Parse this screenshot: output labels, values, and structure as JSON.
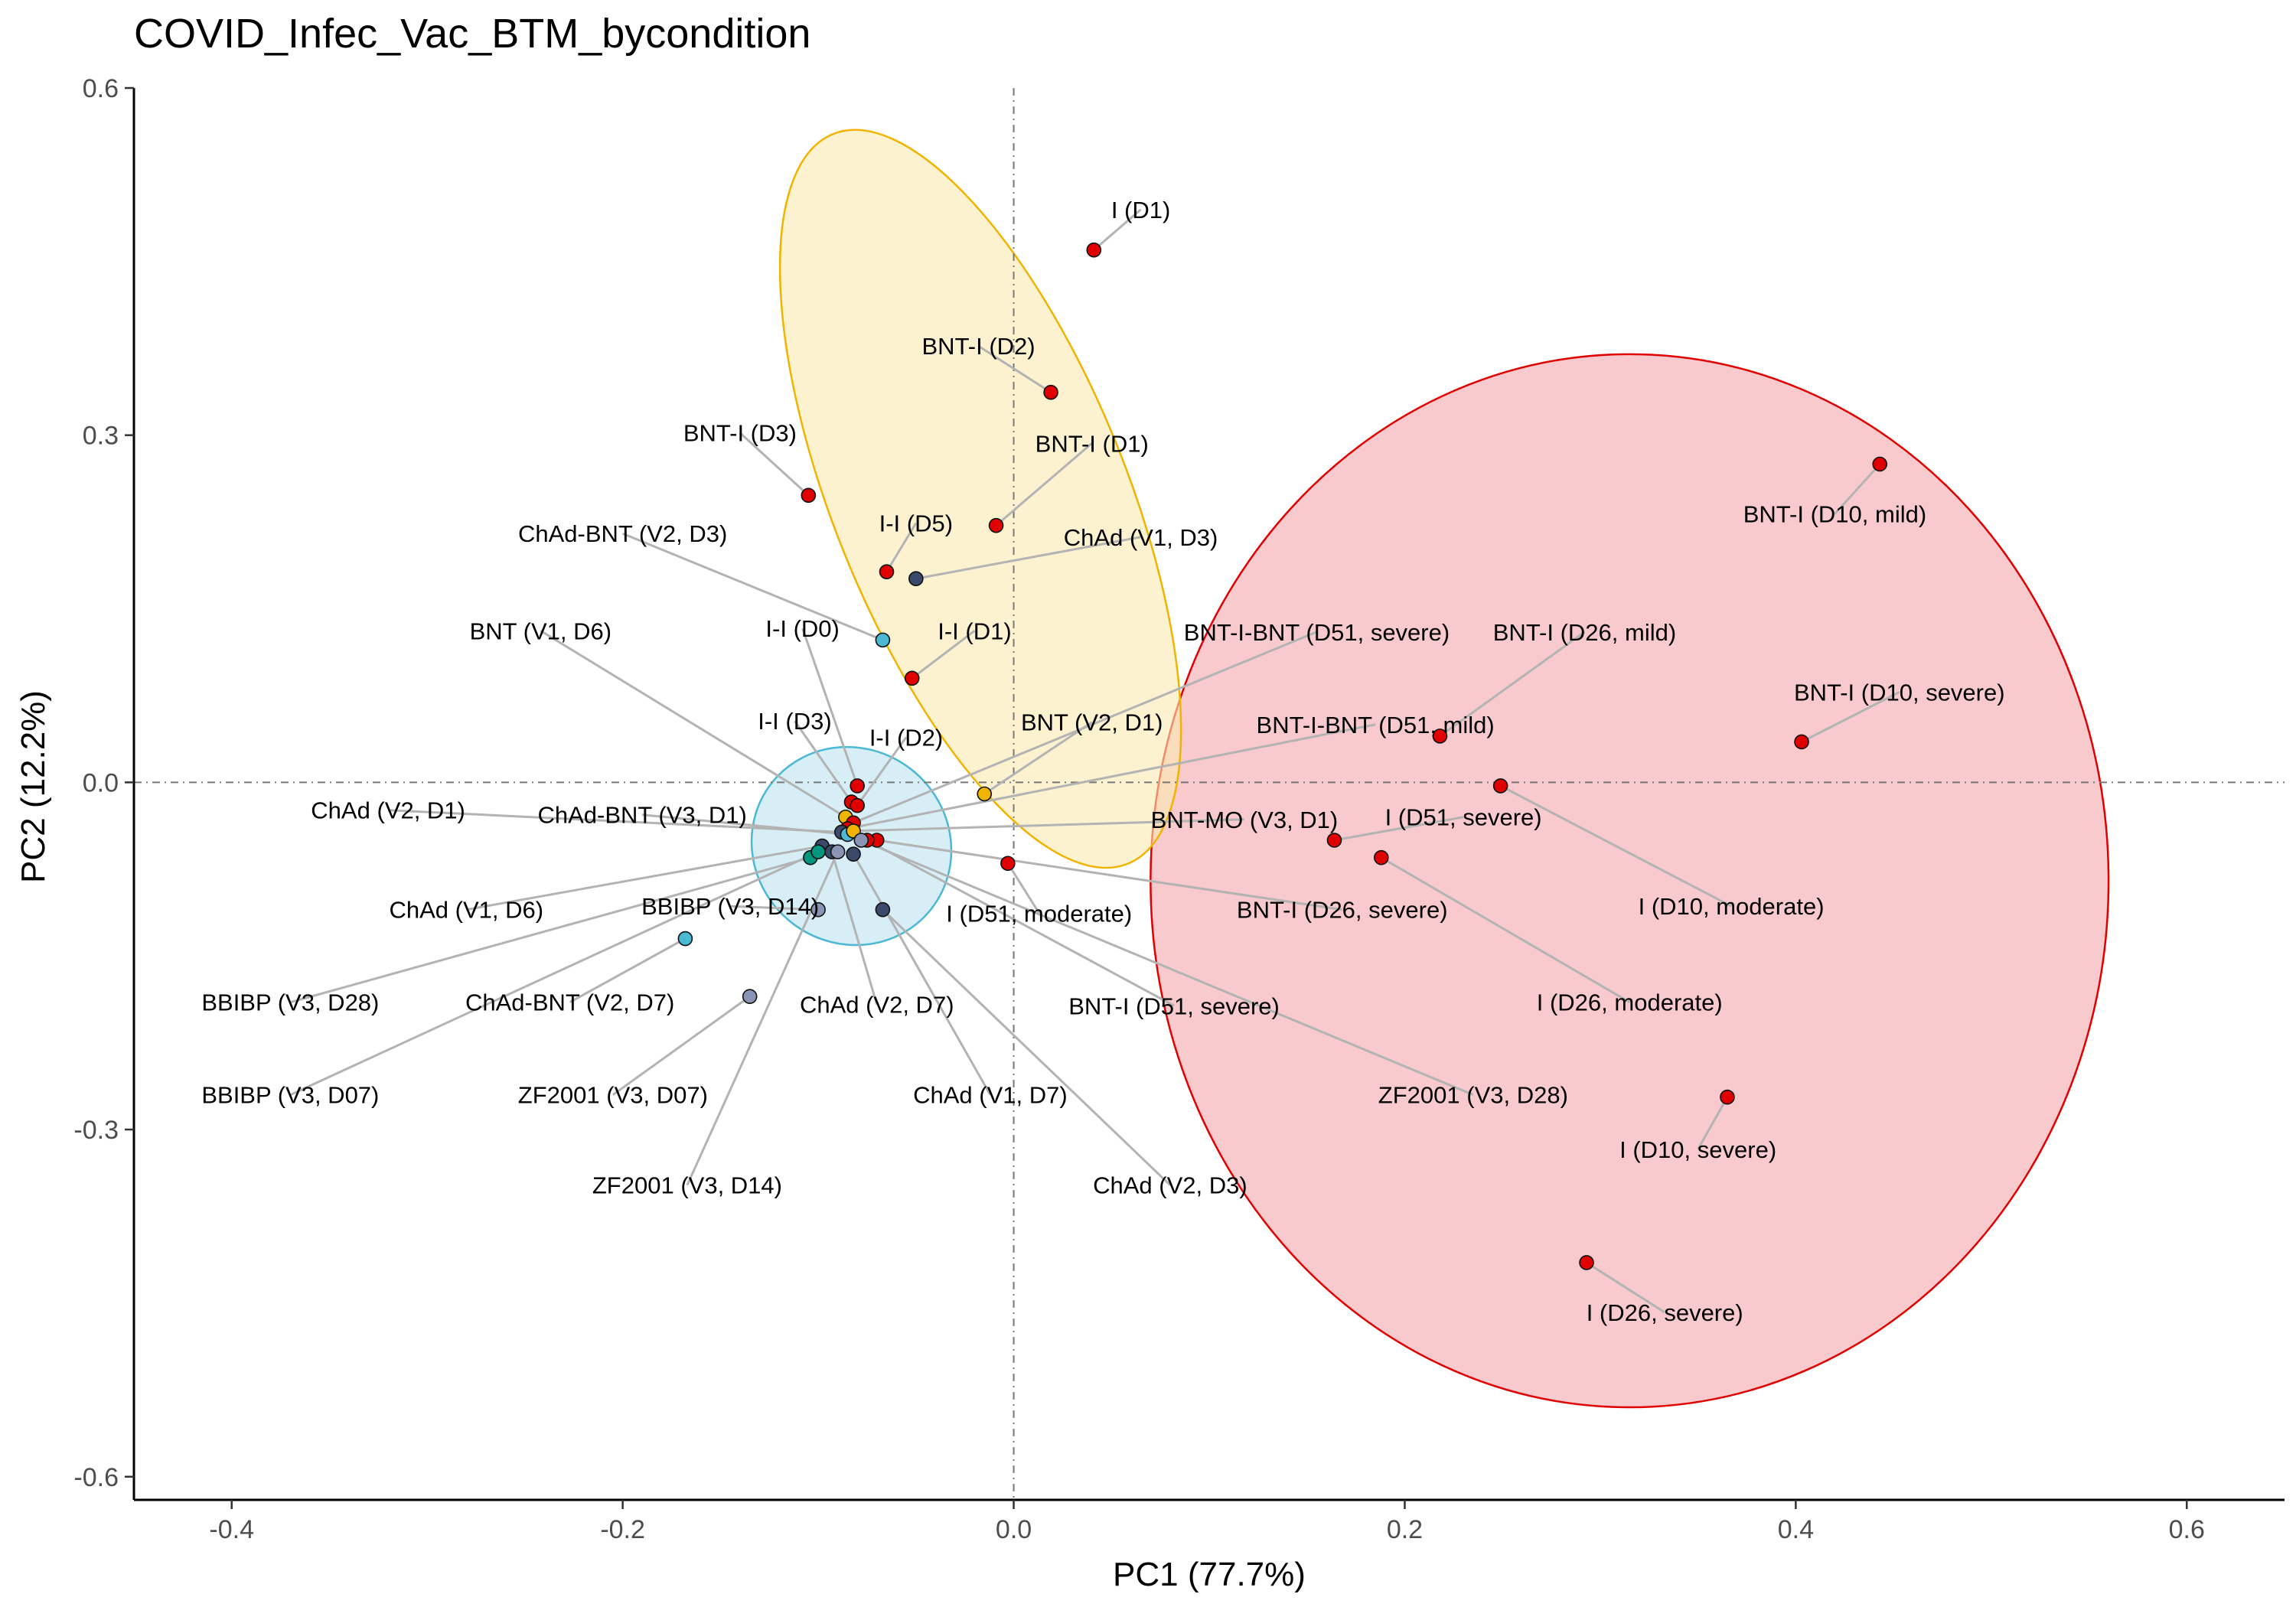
{
  "chart_data": {
    "type": "scatter",
    "title": "COVID_Infec_Vac_BTM_bycondition",
    "xlabel": "PC1 (77.7%)",
    "ylabel": "PC2 (12.2%)",
    "xlim": [
      -0.45,
      0.65
    ],
    "ylim": [
      -0.62,
      0.6
    ],
    "xticks": [
      -0.4,
      -0.2,
      0.0,
      0.2,
      0.4,
      0.6
    ],
    "xtick_labels": [
      "-0.4",
      "-0.2",
      "0.0",
      "0.2",
      "0.4",
      "0.6"
    ],
    "yticks": [
      -0.6,
      -0.3,
      0.0,
      0.3,
      0.6
    ],
    "ytick_labels": [
      "-0.6",
      "-0.3",
      "0.0",
      "0.3",
      "0.6"
    ],
    "grid": false,
    "legend": "none",
    "reference_lines": {
      "x": 0,
      "y": 0
    },
    "colors": {
      "infection": "#e00000",
      "mrna": "#f0b400",
      "mixed": "#4bb8d4",
      "adenovirus": "#3b4a6b",
      "inactivated": "#8a95b5",
      "teal": "#00967d",
      "connector": "#b3b3b3",
      "ellipse_red_fill": "#f4a7ae",
      "ellipse_red_stroke": "#e00000",
      "ellipse_yellow_fill": "#faeab0",
      "ellipse_yellow_stroke": "#f0b400",
      "ellipse_blue_fill": "#bde3f2",
      "ellipse_blue_stroke": "#4bb8d4"
    },
    "ellipses": [
      {
        "cx": 0.315,
        "cy": -0.085,
        "rx": 0.245,
        "ry": 0.455,
        "angle": 0,
        "fill_key": "ellipse_red_fill",
        "stroke_key": "ellipse_red_stroke"
      },
      {
        "cx": -0.017,
        "cy": 0.245,
        "rx": 0.075,
        "ry": 0.34,
        "angle": -22,
        "fill_key": "ellipse_yellow_fill",
        "stroke_key": "ellipse_yellow_stroke"
      },
      {
        "cx": -0.083,
        "cy": -0.055,
        "rx": 0.052,
        "ry": 0.084,
        "angle": 40,
        "fill_key": "ellipse_blue_fill",
        "stroke_key": "ellipse_blue_stroke"
      }
    ],
    "points": [
      {
        "label": "I (D1)",
        "x": 0.041,
        "y": 0.46,
        "color_key": "infection",
        "lx": 0.065,
        "ly": 0.495
      },
      {
        "label": "BNT-I (D2)",
        "x": 0.019,
        "y": 0.337,
        "color_key": "infection",
        "lx": -0.018,
        "ly": 0.377
      },
      {
        "label": "BNT-I (D1)",
        "x": -0.009,
        "y": 0.222,
        "color_key": "infection",
        "lx": 0.04,
        "ly": 0.293
      },
      {
        "label": "BNT-I (D3)",
        "x": -0.105,
        "y": 0.248,
        "color_key": "infection",
        "lx": -0.14,
        "ly": 0.302
      },
      {
        "label": "I-I (D5)",
        "x": -0.065,
        "y": 0.182,
        "color_key": "infection",
        "lx": -0.05,
        "ly": 0.224
      },
      {
        "label": "ChAd (V1, D3)",
        "x": -0.05,
        "y": 0.176,
        "color_key": "adenovirus",
        "lx": 0.065,
        "ly": 0.212
      },
      {
        "label": "ChAd-BNT (V2, D3)",
        "x": -0.067,
        "y": 0.123,
        "color_key": "mixed",
        "lx": -0.2,
        "ly": 0.215
      },
      {
        "label": "I-I (D1)",
        "x": -0.052,
        "y": 0.09,
        "color_key": "infection",
        "lx": -0.02,
        "ly": 0.131
      },
      {
        "label": "I-I (D0)",
        "x": -0.08,
        "y": -0.003,
        "color_key": "infection",
        "lx": -0.108,
        "ly": 0.133
      },
      {
        "label": "BNT (V1, D6)",
        "x": -0.086,
        "y": -0.03,
        "color_key": "mrna",
        "lx": -0.242,
        "ly": 0.131
      },
      {
        "label": "I-I (D3)",
        "x": -0.083,
        "y": -0.017,
        "color_key": "infection",
        "lx": -0.112,
        "ly": 0.053
      },
      {
        "label": "I-I (D2)",
        "x": -0.08,
        "y": -0.02,
        "color_key": "infection",
        "lx": -0.055,
        "ly": 0.039
      },
      {
        "label": "BNT-I-BNT (D51, severe)",
        "x": -0.082,
        "y": -0.035,
        "color_key": "infection",
        "lx": 0.155,
        "ly": 0.13
      },
      {
        "label": "BNT (V2, D1)",
        "x": -0.015,
        "y": -0.01,
        "color_key": "mrna",
        "lx": 0.04,
        "ly": 0.052
      },
      {
        "label": "BNT-I-BNT (D51, mild)",
        "x": -0.085,
        "y": -0.04,
        "color_key": "infection",
        "lx": 0.185,
        "ly": 0.05
      },
      {
        "label": "ChAd (V2, D1)",
        "x": -0.088,
        "y": -0.043,
        "color_key": "adenovirus",
        "lx": -0.32,
        "ly": -0.024
      },
      {
        "label": "ChAd-BNT (V3, D1)",
        "x": -0.085,
        "y": -0.045,
        "color_key": "mixed",
        "lx": -0.19,
        "ly": -0.028
      },
      {
        "label": "BNT-MO (V3, D1)",
        "x": -0.082,
        "y": -0.042,
        "color_key": "mrna",
        "lx": 0.118,
        "ly": -0.032
      },
      {
        "label": "ChAd (V1, D6)",
        "x": -0.098,
        "y": -0.055,
        "color_key": "adenovirus",
        "lx": -0.28,
        "ly": -0.11
      },
      {
        "label": "BBIBP (V3, D14)",
        "x": -0.1,
        "y": -0.11,
        "color_key": "inactivated",
        "lx": -0.145,
        "ly": -0.107
      },
      {
        "label": "I (D51, moderate)",
        "x": -0.003,
        "y": -0.07,
        "color_key": "infection",
        "lx": 0.013,
        "ly": -0.113
      },
      {
        "label": "BNT-I (D26, severe)",
        "x": -0.07,
        "y": -0.05,
        "color_key": "infection",
        "lx": 0.168,
        "ly": -0.11
      },
      {
        "label": "BBIBP (V3, D28)",
        "x": -0.104,
        "y": -0.065,
        "color_key": "teal",
        "lx": -0.37,
        "ly": -0.19
      },
      {
        "label": "ChAd-BNT (V2, D7)",
        "x": -0.168,
        "y": -0.135,
        "color_key": "mixed",
        "lx": -0.227,
        "ly": -0.19
      },
      {
        "label": "ChAd (V2, D7)",
        "x": -0.093,
        "y": -0.06,
        "color_key": "adenovirus",
        "lx": -0.07,
        "ly": -0.192
      },
      {
        "label": "BNT-I (D51, severe)",
        "x": -0.075,
        "y": -0.05,
        "color_key": "infection",
        "lx": 0.082,
        "ly": -0.193
      },
      {
        "label": "BBIBP (V3, D07)",
        "x": -0.1,
        "y": -0.06,
        "color_key": "teal",
        "lx": -0.37,
        "ly": -0.27
      },
      {
        "label": "ZF2001 (V3, D07)",
        "x": -0.135,
        "y": -0.185,
        "color_key": "inactivated",
        "lx": -0.205,
        "ly": -0.27
      },
      {
        "label": "ChAd (V1, D7)",
        "x": -0.082,
        "y": -0.062,
        "color_key": "adenovirus",
        "lx": -0.012,
        "ly": -0.27
      },
      {
        "label": "ZF2001 (V3, D28)",
        "x": -0.078,
        "y": -0.05,
        "color_key": "inactivated",
        "lx": 0.235,
        "ly": -0.27
      },
      {
        "label": "ZF2001 (V3, D14)",
        "x": -0.09,
        "y": -0.06,
        "color_key": "inactivated",
        "lx": -0.167,
        "ly": -0.348
      },
      {
        "label": "ChAd (V2, D3)",
        "x": -0.067,
        "y": -0.11,
        "color_key": "adenovirus",
        "lx": 0.08,
        "ly": -0.348
      },
      {
        "label": "BNT-I (D10, mild)",
        "x": 0.443,
        "y": 0.275,
        "color_key": "infection",
        "lx": 0.42,
        "ly": 0.232
      },
      {
        "label": "BNT-I (D26, mild)",
        "x": 0.218,
        "y": 0.04,
        "color_key": "infection",
        "lx": 0.292,
        "ly": 0.13
      },
      {
        "label": "BNT-I (D10, severe)",
        "x": 0.403,
        "y": 0.035,
        "color_key": "infection",
        "lx": 0.453,
        "ly": 0.078
      },
      {
        "label": "I (D51, severe)",
        "x": 0.164,
        "y": -0.05,
        "color_key": "infection",
        "lx": 0.23,
        "ly": -0.03
      },
      {
        "label": "I (D10, moderate)",
        "x": 0.249,
        "y": -0.003,
        "color_key": "infection",
        "lx": 0.367,
        "ly": -0.107
      },
      {
        "label": "I (D26, moderate)",
        "x": 0.188,
        "y": -0.065,
        "color_key": "infection",
        "lx": 0.315,
        "ly": -0.19
      },
      {
        "label": "I (D10, severe)",
        "x": 0.365,
        "y": -0.272,
        "color_key": "infection",
        "lx": 0.35,
        "ly": -0.317
      },
      {
        "label": "I (D26, severe)",
        "x": 0.293,
        "y": -0.415,
        "color_key": "infection",
        "lx": 0.333,
        "ly": -0.458
      }
    ]
  }
}
